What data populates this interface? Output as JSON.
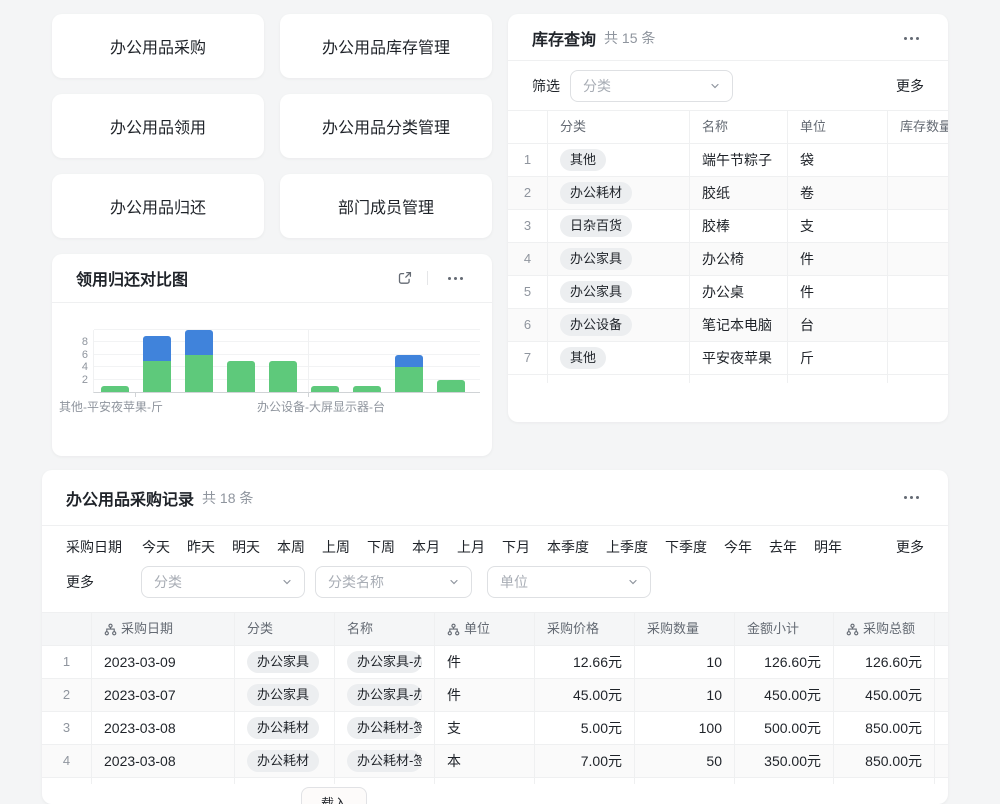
{
  "nav_buttons": [
    {
      "label": "办公用品采购"
    },
    {
      "label": "办公用品库存管理"
    },
    {
      "label": "办公用品领用"
    },
    {
      "label": "办公用品分类管理"
    },
    {
      "label": "办公用品归还"
    },
    {
      "label": "部门成员管理"
    }
  ],
  "chart_card": {
    "title": "领用归还对比图",
    "icons": {
      "expand": "open-expand-icon",
      "menu": "more-menu-icon"
    },
    "chart_data": {
      "type": "bar",
      "stacked": true,
      "bar_count": 9,
      "series": [
        {
          "name": "green-bottom",
          "color": "#5ec97b",
          "values": [
            1,
            5,
            6,
            5,
            5,
            1,
            1,
            4,
            2
          ]
        },
        {
          "name": "blue-top",
          "color": "#4083db",
          "values": [
            0,
            4,
            4,
            0,
            0,
            0,
            0,
            2,
            0
          ]
        }
      ],
      "yticks": [
        2,
        4,
        6,
        8
      ],
      "ylim": [
        0,
        10
      ],
      "x_axis_labels": [
        {
          "text": "其他-平安夜苹果-斤"
        },
        {
          "text": "办公设备-大屏显示器-台"
        }
      ],
      "grid": true,
      "legend": "none"
    }
  },
  "inventory_card": {
    "title": "库存查询",
    "count": "共 15 条",
    "filter_label": "筛选",
    "category_placeholder": "分类",
    "more_label": "更多",
    "columns": [
      {
        "label": "",
        "icon": ""
      },
      {
        "label": "分类",
        "icon": ""
      },
      {
        "label": "名称",
        "icon": ""
      },
      {
        "label": "单位",
        "icon": ""
      },
      {
        "label": "库存数量",
        "icon": ""
      }
    ],
    "rows": [
      {
        "num": "1",
        "category": "其他",
        "name": "端午节粽子",
        "unit": "袋",
        "stock": ""
      },
      {
        "num": "2",
        "category": "办公耗材",
        "name": "胶纸",
        "unit": "卷",
        "stock": ""
      },
      {
        "num": "3",
        "category": "日杂百货",
        "name": "胶棒",
        "unit": "支",
        "stock": ""
      },
      {
        "num": "4",
        "category": "办公家具",
        "name": "办公椅",
        "unit": "件",
        "stock": ""
      },
      {
        "num": "5",
        "category": "办公家具",
        "name": "办公桌",
        "unit": "件",
        "stock": ""
      },
      {
        "num": "6",
        "category": "办公设备",
        "name": "笔记本电脑",
        "unit": "台",
        "stock": ""
      },
      {
        "num": "7",
        "category": "其他",
        "name": "平安夜苹果",
        "unit": "斤",
        "stock": ""
      }
    ]
  },
  "purchase_card": {
    "title": "办公用品采购记录",
    "count": "共 18 条",
    "date_filter": {
      "label": "采购日期",
      "options": [
        "今天",
        "昨天",
        "明天",
        "本周",
        "上周",
        "下周",
        "本月",
        "上月",
        "下月",
        "本季度",
        "上季度",
        "下季度",
        "今年",
        "去年",
        "明年"
      ],
      "more_label": "更多"
    },
    "more_filters_label": "更多",
    "dropdowns": [
      {
        "placeholder": "分类"
      },
      {
        "placeholder": "分类名称"
      },
      {
        "placeholder": "单位"
      }
    ],
    "columns": [
      {
        "label": "",
        "icon": ""
      },
      {
        "label": "采购日期",
        "icon": "hierarchy-icon"
      },
      {
        "label": "分类",
        "icon": ""
      },
      {
        "label": "名称",
        "icon": ""
      },
      {
        "label": "单位",
        "icon": "hierarchy-icon"
      },
      {
        "label": "采购价格",
        "icon": ""
      },
      {
        "label": "采购数量",
        "icon": ""
      },
      {
        "label": "金额小计",
        "icon": ""
      },
      {
        "label": "采购总额",
        "icon": "hierarchy-icon"
      },
      {
        "label": "",
        "icon": ""
      }
    ],
    "rows": [
      {
        "num": "1",
        "date": "2023-03-09",
        "category": "办公家具",
        "name": "办公家具-办",
        "unit": "件",
        "price": "12.66元",
        "qty": "10",
        "subtotal": "126.60元",
        "total": "126.60元"
      },
      {
        "num": "2",
        "date": "2023-03-07",
        "category": "办公家具",
        "name": "办公家具-办",
        "unit": "件",
        "price": "45.00元",
        "qty": "10",
        "subtotal": "450.00元",
        "total": "450.00元"
      },
      {
        "num": "3",
        "date": "2023-03-08",
        "category": "办公耗材",
        "name": "办公耗材-签",
        "unit": "支",
        "price": "5.00元",
        "qty": "100",
        "subtotal": "500.00元",
        "total": "850.00元"
      },
      {
        "num": "4",
        "date": "2023-03-08",
        "category": "办公耗材",
        "name": "办公耗材-签",
        "unit": "本",
        "price": "7.00元",
        "qty": "50",
        "subtotal": "350.00元",
        "total": "850.00元"
      }
    ],
    "load_more_label": "载入"
  }
}
